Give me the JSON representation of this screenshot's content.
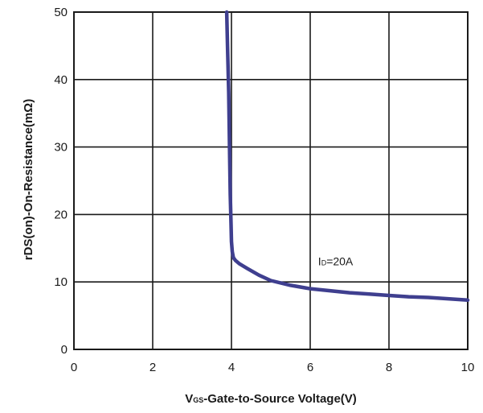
{
  "chart_data": {
    "type": "line",
    "xlabel": {
      "main": "V",
      "sub": "GS",
      "rest": "-Gate-to-Source Voltage(V)"
    },
    "ylabel": "rDS(on)-On-Resistance(mΩ)",
    "xlim": [
      0,
      10
    ],
    "ylim": [
      0,
      50
    ],
    "xticks": [
      0,
      2,
      4,
      6,
      8,
      10
    ],
    "yticks": [
      0,
      10,
      20,
      30,
      40,
      50
    ],
    "grid": true,
    "series": [
      {
        "color": "#3f3f8f",
        "x": [
          3.88,
          3.9,
          3.93,
          3.95,
          3.97,
          3.99,
          4.0,
          4.02,
          4.05,
          4.1,
          4.2,
          4.4,
          4.7,
          5.0,
          5.5,
          6.0,
          6.5,
          7.0,
          7.5,
          8.0,
          8.5,
          9.0,
          9.5,
          10.0
        ],
        "y": [
          50,
          45,
          38,
          30,
          23,
          18.5,
          16,
          14.5,
          13.6,
          13.2,
          12.7,
          12.0,
          11.0,
          10.2,
          9.5,
          9.0,
          8.7,
          8.4,
          8.2,
          8.0,
          7.8,
          7.7,
          7.5,
          7.3
        ]
      }
    ],
    "annotations": [
      {
        "main": "I",
        "sub": "D",
        "rest": "=20A",
        "x": 6.2,
        "y": 12.5
      }
    ]
  }
}
